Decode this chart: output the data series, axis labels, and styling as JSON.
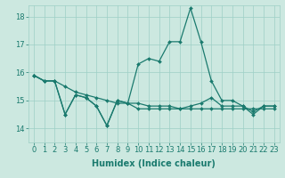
{
  "title": "",
  "xlabel": "Humidex (Indice chaleur)",
  "ylabel": "",
  "bg_color": "#cce8e0",
  "grid_color": "#9ecfc6",
  "line_color": "#1a7a6e",
  "xlim": [
    -0.5,
    23.5
  ],
  "ylim": [
    13.5,
    18.4
  ],
  "yticks": [
    14,
    15,
    16,
    17,
    18
  ],
  "xticks": [
    0,
    1,
    2,
    3,
    4,
    5,
    6,
    7,
    8,
    9,
    10,
    11,
    12,
    13,
    14,
    15,
    16,
    17,
    18,
    19,
    20,
    21,
    22,
    23
  ],
  "line1_x": [
    0,
    1,
    2,
    3,
    4,
    5,
    6,
    7,
    8,
    9,
    10,
    11,
    12,
    13,
    14,
    15,
    16,
    17,
    18,
    19,
    20,
    21,
    22,
    23
  ],
  "line1_y": [
    15.9,
    15.7,
    15.7,
    14.5,
    15.2,
    15.1,
    14.8,
    14.1,
    15.0,
    14.9,
    14.7,
    14.7,
    14.7,
    14.7,
    14.7,
    14.8,
    14.9,
    15.1,
    14.8,
    14.8,
    14.8,
    14.6,
    14.8,
    14.8
  ],
  "line2_x": [
    0,
    1,
    2,
    3,
    4,
    5,
    6,
    7,
    8,
    9,
    10,
    11,
    12,
    13,
    14,
    15,
    16,
    17,
    18,
    19,
    20,
    21,
    22,
    23
  ],
  "line2_y": [
    15.9,
    15.7,
    15.7,
    15.5,
    15.3,
    15.2,
    15.1,
    15.0,
    14.9,
    14.9,
    14.9,
    14.8,
    14.8,
    14.8,
    14.7,
    14.7,
    14.7,
    14.7,
    14.7,
    14.7,
    14.7,
    14.7,
    14.7,
    14.7
  ],
  "line3_x": [
    0,
    1,
    2,
    3,
    4,
    5,
    6,
    7,
    8,
    9,
    10,
    11,
    12,
    13,
    14,
    15,
    16,
    17,
    18,
    19,
    20,
    21,
    22,
    23
  ],
  "line3_y": [
    15.9,
    15.7,
    15.7,
    14.5,
    15.2,
    15.1,
    14.8,
    14.1,
    15.0,
    14.9,
    16.3,
    16.5,
    16.4,
    17.1,
    17.1,
    18.3,
    17.1,
    15.7,
    15.0,
    15.0,
    14.8,
    14.5,
    14.8,
    14.8
  ],
  "marker": "D",
  "markersize": 2.0,
  "linewidth": 0.9,
  "fontsize_label": 7,
  "fontsize_tick": 6
}
